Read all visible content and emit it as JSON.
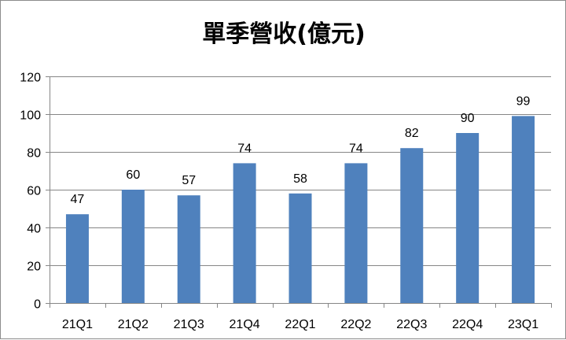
{
  "chart_data": {
    "type": "bar",
    "title": "單季營收(億元)",
    "categories": [
      "21Q1",
      "21Q2",
      "21Q3",
      "21Q4",
      "22Q1",
      "22Q2",
      "22Q3",
      "22Q4",
      "23Q1"
    ],
    "values": [
      47,
      60,
      57,
      74,
      58,
      74,
      82,
      90,
      99
    ],
    "data_labels": [
      "47",
      "60",
      "57",
      "74",
      "58",
      "74",
      "82",
      "90",
      "99"
    ],
    "xlabel": "",
    "ylabel": "",
    "ylim": [
      0,
      120
    ],
    "yticks": [
      0,
      20,
      40,
      60,
      80,
      100,
      120
    ],
    "ytick_labels": [
      "0",
      "20",
      "40",
      "60",
      "80",
      "100",
      "120"
    ],
    "grid": true,
    "legend": "none",
    "colors": {
      "bar": "#4f81bd",
      "gridline": "#868686",
      "axis": "#868686",
      "border": "#8c8c8c"
    }
  }
}
